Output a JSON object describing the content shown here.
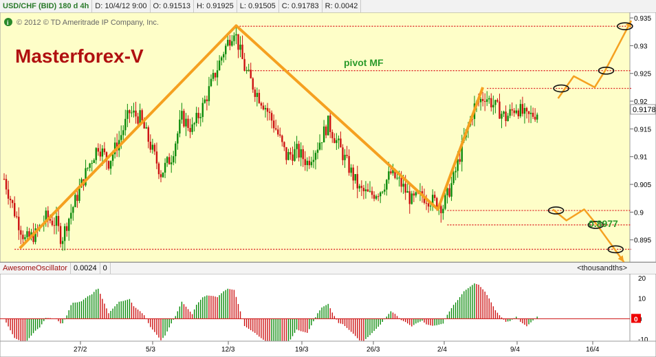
{
  "header": {
    "symbol": "USD/CHF (BID) 180 d 4h",
    "date": "D: 10/4/12 9:00",
    "open": "O: 0.91513",
    "high": "H: 0.91925",
    "low": "L: 0.91505",
    "close": "C: 0.91783",
    "range": "R: 0.0042"
  },
  "copyright": "© 2012 © TD Ameritrade IP Company, Inc.",
  "watermark": "Masterforex-V",
  "annotations": {
    "pivot_label": "pivot MF",
    "level_label": "0.8977"
  },
  "oscillator": {
    "name": "AwesomeOscillator",
    "value": "0.0024",
    "extra": "0",
    "units": "<thousandths>",
    "zero_badge": "0"
  },
  "colors": {
    "chart_bg": "#fefec8",
    "bull": "#0a8a0a",
    "bear": "#cc1111",
    "wave": "#f5a020",
    "level": "#dd2222",
    "watermark": "#b01010"
  },
  "chart_data": [
    {
      "type": "candlestick",
      "title": "USD/CHF (BID) 180 d 4h",
      "ylim": [
        0.891,
        0.936
      ],
      "y_ticks": [
        "0.935",
        "0.93",
        "0.925",
        "0.92",
        "0.915",
        "0.91",
        "0.905",
        "0.9",
        "0.895"
      ],
      "last_price": "0.9178",
      "x_ticks": [
        "27/2",
        "5/3",
        "12/3",
        "19/3",
        "26/3",
        "2/4",
        "9/4",
        "16/4"
      ],
      "price_path": [
        [
          0,
          0.906
        ],
        [
          10,
          0.9
        ],
        [
          20,
          0.895
        ],
        [
          30,
          0.896
        ],
        [
          40,
          0.899
        ],
        [
          50,
          0.898
        ],
        [
          55,
          0.895
        ],
        [
          60,
          0.898
        ],
        [
          70,
          0.903
        ],
        [
          80,
          0.908
        ],
        [
          90,
          0.912
        ],
        [
          100,
          0.909
        ],
        [
          110,
          0.913
        ],
        [
          120,
          0.918
        ],
        [
          130,
          0.917
        ],
        [
          140,
          0.912
        ],
        [
          150,
          0.907
        ],
        [
          160,
          0.91
        ],
        [
          170,
          0.917
        ],
        [
          180,
          0.915
        ],
        [
          190,
          0.919
        ],
        [
          200,
          0.924
        ],
        [
          210,
          0.929
        ],
        [
          220,
          0.933
        ],
        [
          230,
          0.926
        ],
        [
          240,
          0.922
        ],
        [
          250,
          0.919
        ],
        [
          260,
          0.915
        ],
        [
          270,
          0.91
        ],
        [
          280,
          0.911
        ],
        [
          290,
          0.909
        ],
        [
          300,
          0.912
        ],
        [
          310,
          0.916
        ],
        [
          320,
          0.912
        ],
        [
          330,
          0.908
        ],
        [
          340,
          0.904
        ],
        [
          350,
          0.903
        ],
        [
          360,
          0.904
        ],
        [
          370,
          0.907
        ],
        [
          380,
          0.905
        ],
        [
          390,
          0.902
        ],
        [
          400,
          0.903
        ],
        [
          410,
          0.902
        ],
        [
          420,
          0.901
        ],
        [
          430,
          0.906
        ],
        [
          440,
          0.913
        ],
        [
          450,
          0.919
        ],
        [
          460,
          0.921
        ],
        [
          470,
          0.919
        ],
        [
          480,
          0.917
        ],
        [
          490,
          0.919
        ],
        [
          500,
          0.917
        ],
        [
          510,
          0.918
        ]
      ],
      "levels": [
        {
          "price": 0.9335,
          "from": 220,
          "to": 600
        },
        {
          "price": 0.9255,
          "from": 232,
          "to": 600
        },
        {
          "price": 0.9223,
          "from": 462,
          "to": 600
        },
        {
          "price": 0.9003,
          "from": 424,
          "to": 600
        },
        {
          "price": 0.8977,
          "from": 424,
          "to": 600
        },
        {
          "price": 0.8933,
          "from": 10,
          "to": 600
        }
      ],
      "wave_lines": [
        [
          [
            15,
            0.8935
          ],
          [
            222,
            0.9336
          ],
          [
            415,
            0.9005
          ],
          [
            458,
            0.9225
          ]
        ],
        [
          [
            530,
            0.9205
          ],
          [
            545,
            0.9245
          ],
          [
            565,
            0.9225
          ],
          [
            575,
            0.9255
          ],
          [
            600,
            0.9345
          ]
        ],
        [
          [
            525,
            0.9005
          ],
          [
            538,
            0.8985
          ],
          [
            555,
            0.9005
          ],
          [
            568,
            0.8975
          ],
          [
            593,
            0.891
          ]
        ]
      ],
      "ellipses": [
        {
          "x": 594,
          "price": 0.9335
        },
        {
          "x": 576,
          "price": 0.9255
        },
        {
          "x": 533,
          "price": 0.9223
        },
        {
          "x": 528,
          "price": 0.9003
        },
        {
          "x": 566,
          "price": 0.8977
        },
        {
          "x": 585,
          "price": 0.8933
        }
      ]
    },
    {
      "type": "bar",
      "title": "AwesomeOscillator",
      "ylim": [
        -11,
        22
      ],
      "y_ticks": [
        "20",
        "10",
        "0",
        "-10"
      ],
      "zero_line": 0
    }
  ]
}
